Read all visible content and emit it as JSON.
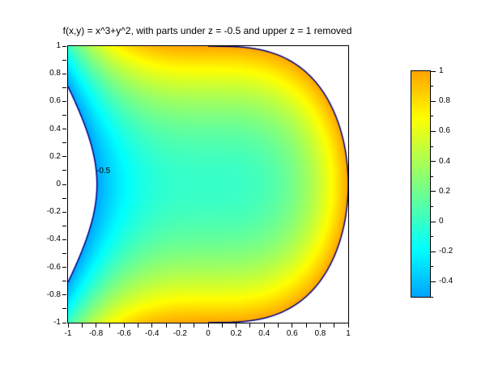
{
  "chart": {
    "title": "f(x,y) = x^3+y^2, with parts under z = -0.5 and upper z = 1 removed",
    "contour_label": {
      "text": "-0.5"
    }
  },
  "chart_data": {
    "type": "heatmap",
    "title": "f(x,y) = x^3+y^2, with parts under z = -0.5 and upper z = 1 removed",
    "function": "f(x,y) = x^3 + y^2",
    "x_range": [
      -1,
      1
    ],
    "y_range": [
      -1,
      1
    ],
    "z_clip_min": -0.5,
    "z_clip_max": 1,
    "removed_regions": "white where f < -0.5 (left lens) and f > 1 (upper/lower right corners)",
    "colormap": "jet",
    "color_axis": [
      -1.5,
      2.0
    ],
    "boundary_line_color": "#000080",
    "background_color": "#ffffff",
    "grid": false,
    "tick_step": 0.1,
    "label_step": 0.2,
    "x_tick_labels": [
      {
        "v": -1,
        "t": "-1"
      },
      {
        "v": -0.8,
        "t": "-0.8"
      },
      {
        "v": -0.6,
        "t": "-0.6"
      },
      {
        "v": -0.4,
        "t": "-0.4"
      },
      {
        "v": -0.2,
        "t": "-0.2"
      },
      {
        "v": 0,
        "t": "0"
      },
      {
        "v": 0.2,
        "t": "0.2"
      },
      {
        "v": 0.4,
        "t": "0.4"
      },
      {
        "v": 0.6,
        "t": "0.6"
      },
      {
        "v": 0.8,
        "t": "0.8"
      },
      {
        "v": 1,
        "t": "1"
      }
    ],
    "y_tick_labels": [
      {
        "v": 1,
        "t": "1"
      },
      {
        "v": 0.8,
        "t": "0.8"
      },
      {
        "v": 0.6,
        "t": "0.6"
      },
      {
        "v": 0.4,
        "t": "0.4"
      },
      {
        "v": 0.2,
        "t": "0.2"
      },
      {
        "v": 0,
        "t": "0"
      },
      {
        "v": -0.2,
        "t": "-0.2"
      },
      {
        "v": -0.4,
        "t": "-0.4"
      },
      {
        "v": -0.6,
        "t": "-0.6"
      },
      {
        "v": -0.8,
        "t": "-0.8"
      },
      {
        "v": -1,
        "t": "-1"
      }
    ],
    "colorbar": {
      "min": -0.5,
      "max": 1,
      "tick_step": 0.1,
      "labels": [
        {
          "v": 1,
          "t": "1"
        },
        {
          "v": 0.8,
          "t": "0.8"
        },
        {
          "v": 0.6,
          "t": "0.6"
        },
        {
          "v": 0.4,
          "t": "0.4"
        },
        {
          "v": 0.2,
          "t": "0.2"
        },
        {
          "v": 0,
          "t": "0"
        },
        {
          "v": -0.2,
          "t": "-0.2"
        },
        {
          "v": -0.4,
          "t": "-0.4"
        }
      ]
    },
    "contour_labels": [
      {
        "level": -0.5,
        "text": "-0.5",
        "x": -0.8,
        "y": 0.09
      }
    ]
  }
}
